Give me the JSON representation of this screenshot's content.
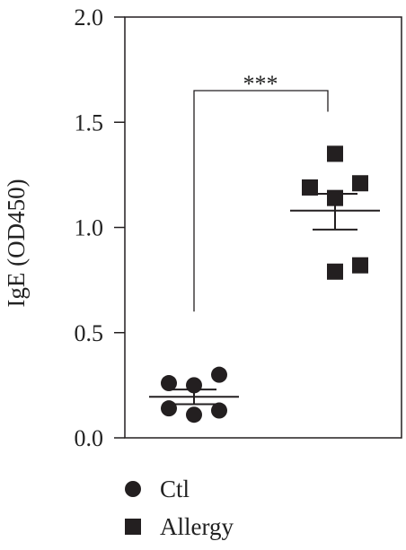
{
  "chart_data": {
    "type": "scatter",
    "title": "",
    "xlabel": "",
    "ylabel": "IgE (OD450)",
    "ylim": [
      0,
      2.0
    ],
    "yticks": [
      "0.0",
      "0.5",
      "1.0",
      "1.5",
      "2.0"
    ],
    "grid": false,
    "legend_position": "bottom",
    "significance": "***",
    "series": [
      {
        "name": "Ctl",
        "marker": "circle",
        "color": "#231f20",
        "values": [
          0.26,
          0.25,
          0.3,
          0.14,
          0.11,
          0.13
        ],
        "mean": 0.195,
        "sem_upper": 0.23,
        "sem_lower": 0.16
      },
      {
        "name": "Allergy",
        "marker": "square",
        "color": "#231f20",
        "values": [
          1.35,
          1.19,
          1.14,
          1.21,
          0.79,
          0.82
        ],
        "mean": 1.08,
        "sem_upper": 1.16,
        "sem_lower": 0.99
      }
    ]
  }
}
